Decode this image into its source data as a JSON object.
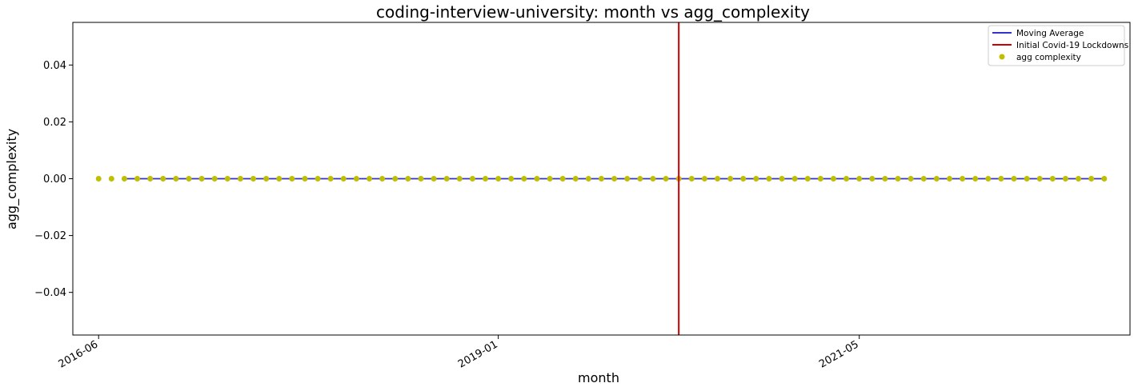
{
  "chart_data": {
    "type": "scatter",
    "title": "coding-interview-university: month vs agg_complexity",
    "xlabel": "month",
    "ylabel": "agg_complexity",
    "x_start": "2016-06",
    "x_end": "2022-12",
    "xlim": [
      "2016-04",
      "2023-02"
    ],
    "ylim": [
      -0.055,
      0.055
    ],
    "x_ticks": [
      "2016-06",
      "2019-01",
      "2021-05"
    ],
    "y_ticks": [
      0.04,
      0.02,
      0.0,
      -0.02,
      -0.04
    ],
    "y_tick_labels": [
      "0.04",
      "0.02",
      "0.00",
      "−0.02",
      "−0.04"
    ],
    "series": [
      {
        "name": "agg complexity",
        "kind": "scatter",
        "color": "#bfbf00",
        "constant_value": 0.0,
        "from": "2016-06",
        "to": "2022-12"
      },
      {
        "name": "Moving Average",
        "kind": "line",
        "color": "#3333cc",
        "constant_value": 0.0,
        "from": "2016-08",
        "to": "2022-12"
      }
    ],
    "vline": {
      "name": "Initial Covid-19 Lockdowns",
      "x": "2020-03",
      "color": "#cc0000"
    },
    "legend_position": "top-right",
    "grid": false
  }
}
